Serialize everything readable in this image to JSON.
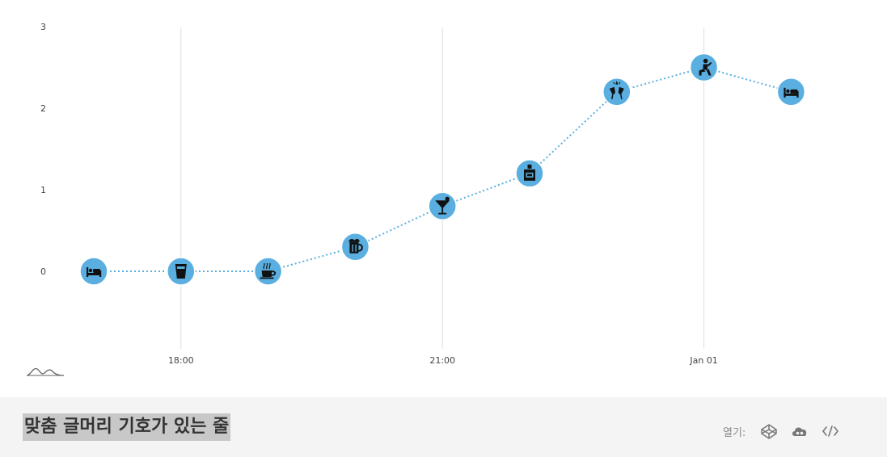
{
  "chart_data": {
    "type": "line",
    "series": [
      {
        "points": [
          {
            "x": "17:00",
            "y": 0,
            "marker": "bed-icon"
          },
          {
            "x": "18:00",
            "y": 0,
            "marker": "glass-of-water-icon"
          },
          {
            "x": "19:00",
            "y": 0,
            "marker": "coffee-cup-icon"
          },
          {
            "x": "20:00",
            "y": 0.3,
            "marker": "beer-mug-icon"
          },
          {
            "x": "21:00",
            "y": 0.8,
            "marker": "cocktail-glass-icon"
          },
          {
            "x": "22:00",
            "y": 1.2,
            "marker": "whiskey-bottle-icon"
          },
          {
            "x": "23:00",
            "y": 2.2,
            "marker": "champagne-glasses-icon"
          },
          {
            "x": "00:00",
            "y": 2.5,
            "marker": "person-kneeling-icon"
          },
          {
            "x": "01:00",
            "y": 2.2,
            "marker": "bed-icon"
          }
        ]
      }
    ],
    "x_ticks": [
      "18:00",
      "21:00",
      "Jan 01"
    ],
    "y_ticks": [
      "0",
      "1",
      "2",
      "3"
    ],
    "ylim": [
      -1,
      3
    ],
    "line_style": "dotted",
    "marker_color": "#5aafe0",
    "line_color": "#5aafe0",
    "grid": "vertical gridlines at x ticks"
  },
  "footer": {
    "title": "맞춤 글머리 기호가 있는 줄",
    "open_label": "열기:",
    "icons": [
      "codepen-icon",
      "cloud-icon",
      "code-icon"
    ]
  },
  "logo": "chart-logo-icon"
}
